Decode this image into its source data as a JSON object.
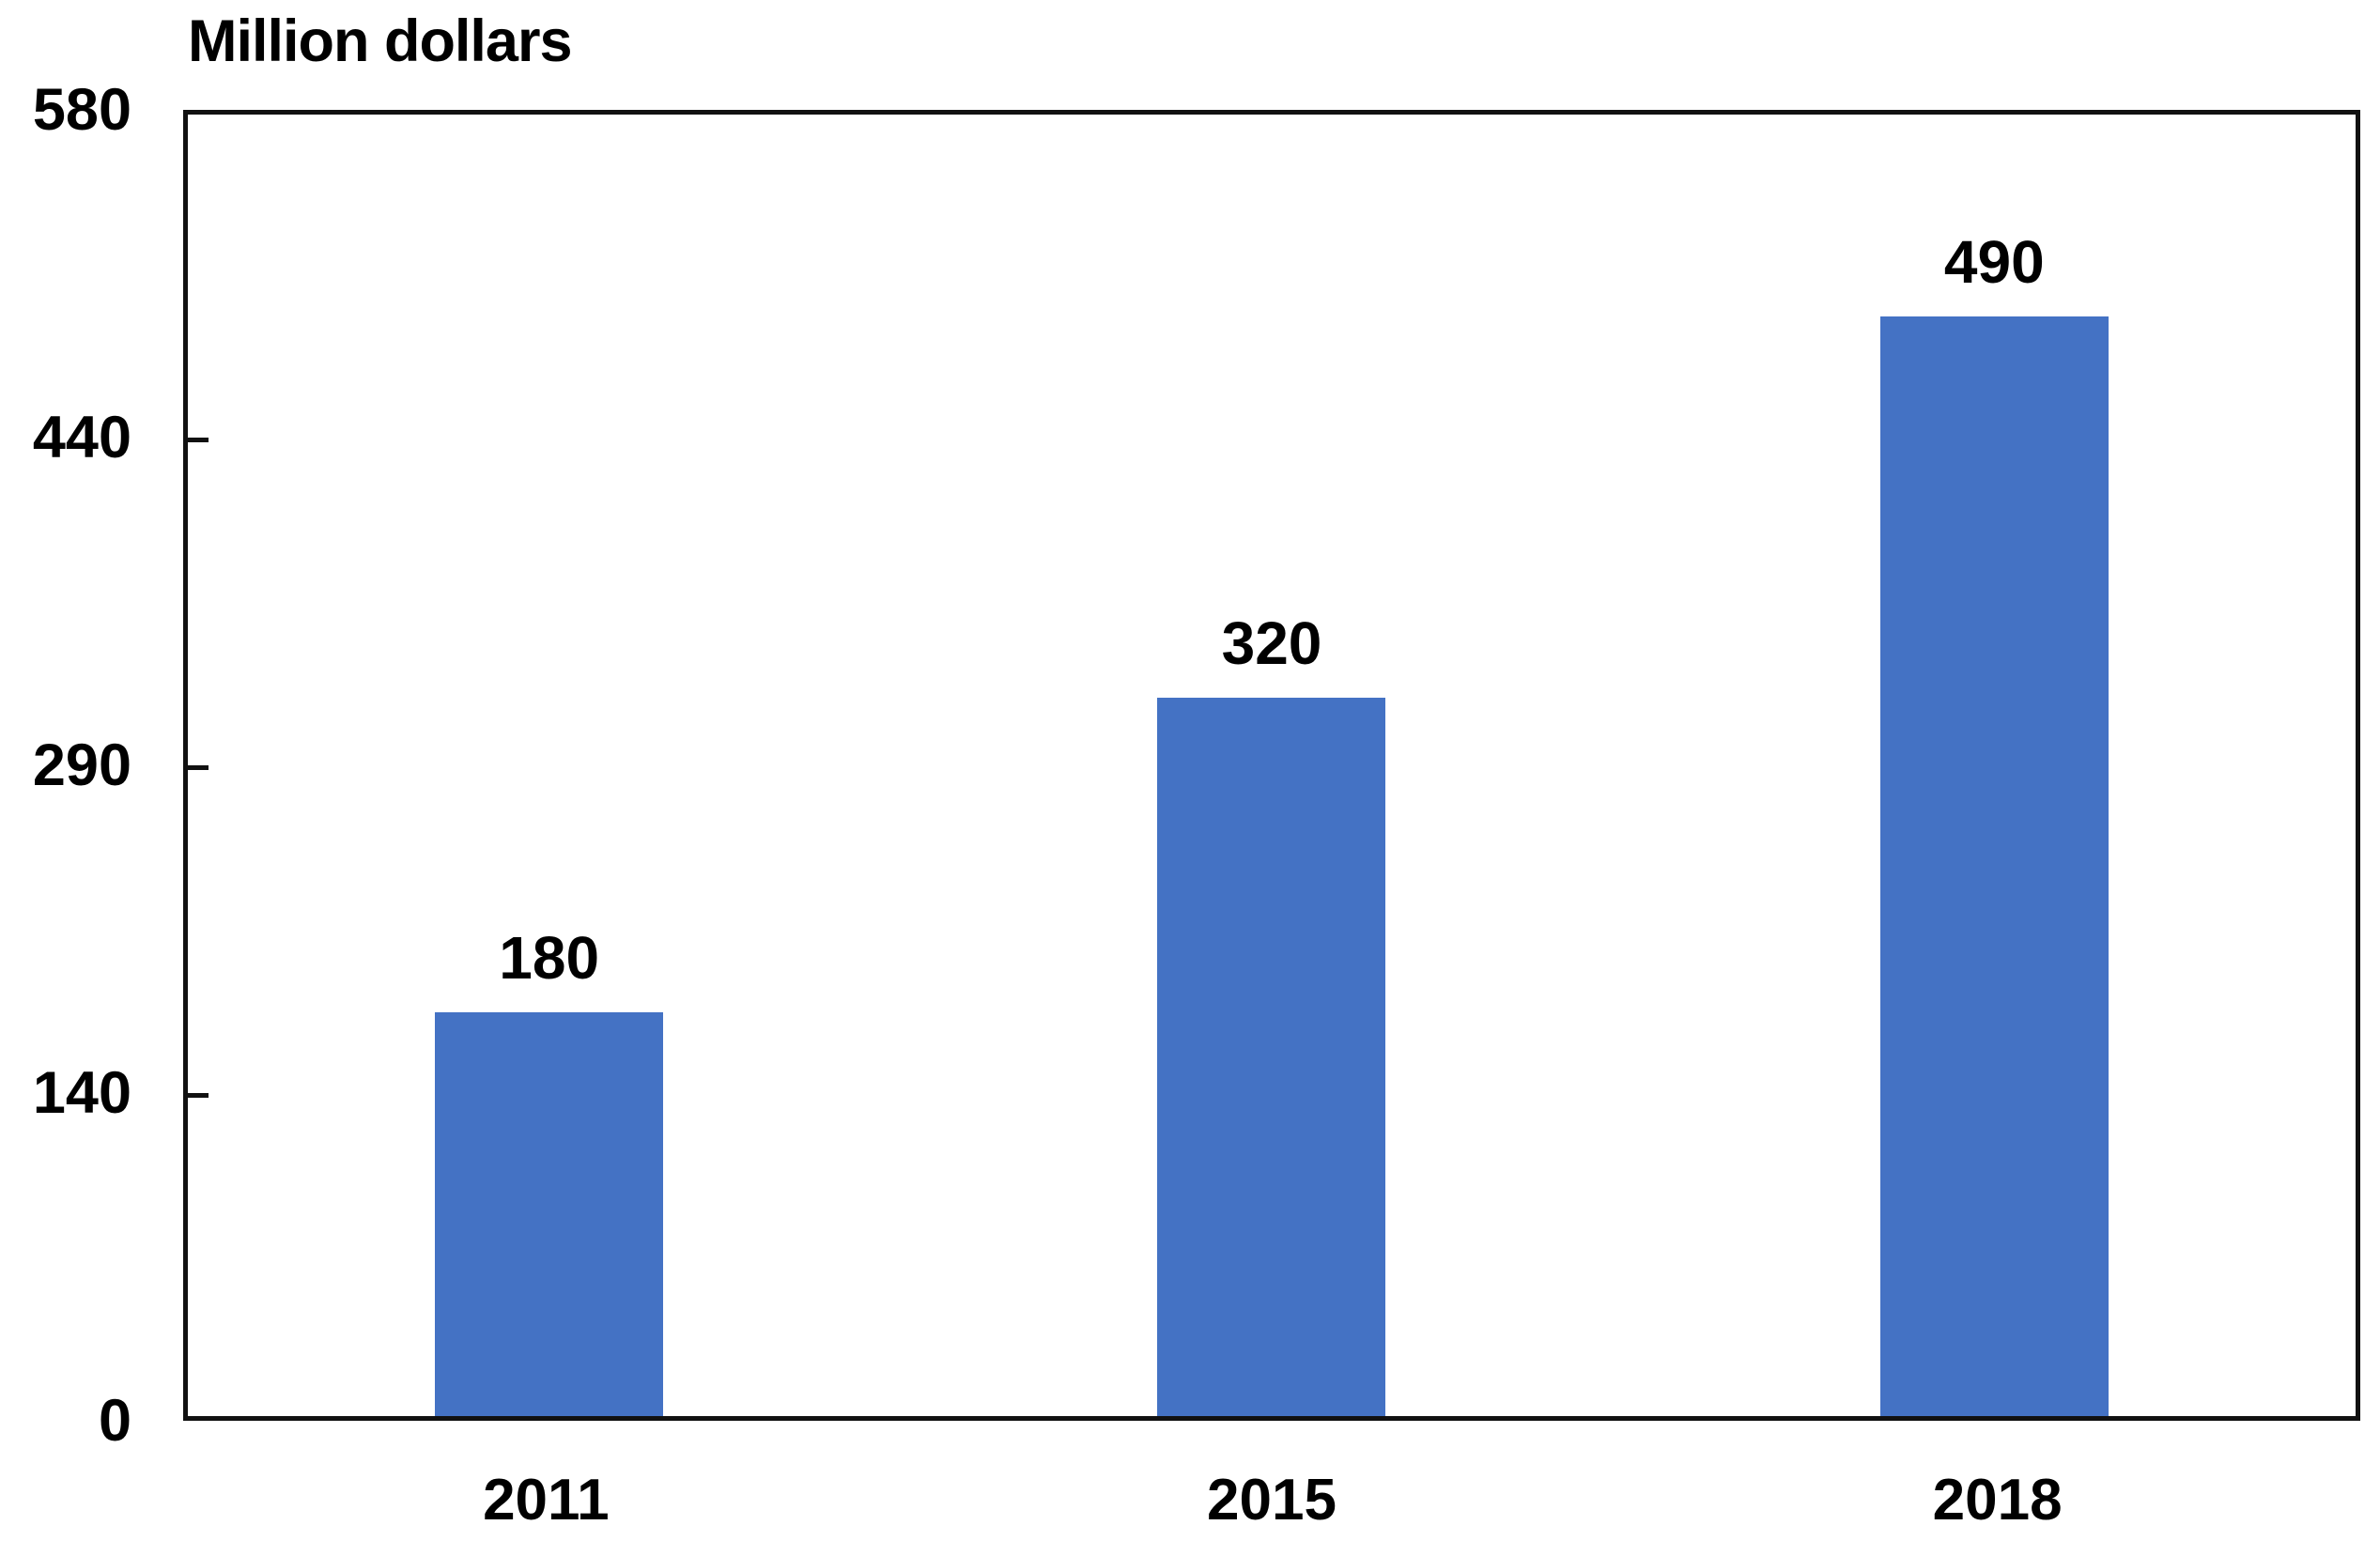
{
  "chart_data": {
    "type": "bar",
    "title": "Million dollars",
    "ylabel": "Million dollars",
    "xlabel": "",
    "categories": [
      "2011",
      "2015",
      "2018"
    ],
    "values": [
      180,
      320,
      490
    ],
    "data_labels": [
      "180",
      "320",
      "490"
    ],
    "ylim": [
      0,
      580
    ],
    "yticks": [
      0,
      140,
      290,
      440,
      580
    ],
    "ytick_labels": [
      "0",
      "140",
      "290",
      "440",
      "580"
    ],
    "grid": false,
    "legend_position": "none",
    "bar_color": "#4472C4",
    "axis_color": "#111111",
    "text_color": "#000000",
    "background_color": "#FFFFFF"
  }
}
